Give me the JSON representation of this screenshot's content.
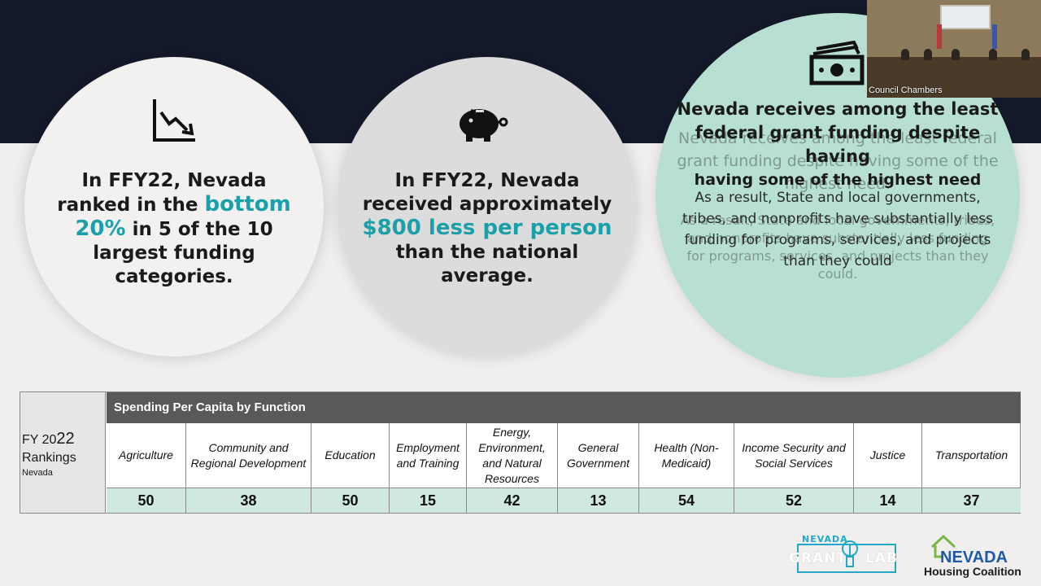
{
  "colors": {
    "accent_teal": "#1aa0a8",
    "dark_band": "#141a2b",
    "mint_circle": "#b8e0d2",
    "table_value_row": "#cfe9df",
    "table_header": "#595959"
  },
  "circles": {
    "left": {
      "icon": "declining-chart-icon",
      "pre": "In FFY22, Nevada ranked in the ",
      "highlight": "bottom 20%",
      "post": " in 5 of the 10 largest funding categories."
    },
    "middle": {
      "icon": "piggy-bank-icon",
      "pre": "In FFY22, Nevada received approximately ",
      "highlight": "$800 less per person",
      "post": " than the national average."
    },
    "right": {
      "icon": "money-bill-icon",
      "headline": "Nevada receives among the least federal grant funding despite having",
      "subhead": "having some of the highest need",
      "body": "As a result, State and local governments, tribes, and nonprofits have substantially less funding for programs, services, and projects than they could",
      "ghost_headline": "Nevada receives among the least federal grant funding despite having some of the highest need.",
      "ghost_body": "As a result, State and local governments, tribes, and nonprofits have substantially less funding for programs, services, and projects than they could."
    }
  },
  "video": {
    "label": "Council Chambers"
  },
  "table": {
    "fy_prefix": "FY 20",
    "fy_suffix": "22",
    "rankings_label": "Rankings",
    "state": "Nevada",
    "header": "Spending Per Capita by Function",
    "categories": [
      "Agriculture",
      "Community and Regional Development",
      "Education",
      "Employment and Training",
      "Energy, Environment, and Natural Resources",
      "General Government",
      "Health (Non-Medicaid)",
      "Income Security and Social Services",
      "Justice",
      "Transportation"
    ],
    "values": [
      "50",
      "38",
      "50",
      "15",
      "42",
      "13",
      "54",
      "52",
      "14",
      "37"
    ]
  },
  "logos": {
    "grant_lab_top": "NEVADA",
    "grant_lab_left": "GRANT",
    "grant_lab_right": "LAB",
    "housing_top": "NEVADA",
    "housing_bottom": "Housing Coalition"
  }
}
